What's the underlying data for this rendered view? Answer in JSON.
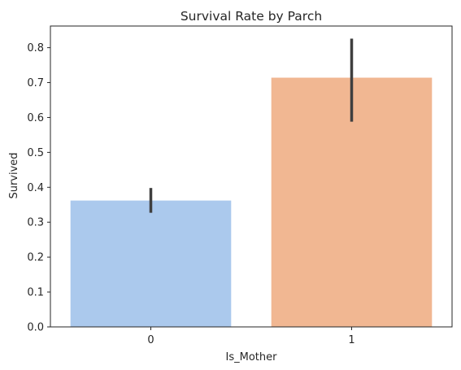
{
  "chart_data": {
    "type": "bar",
    "title": "Survival Rate by Parch",
    "xlabel": "Is_Mother",
    "ylabel": "Survived",
    "categories": [
      "0",
      "1"
    ],
    "values": [
      0.362,
      0.714
    ],
    "error_bars": [
      {
        "low": 0.327,
        "high": 0.398
      },
      {
        "low": 0.588,
        "high": 0.826
      }
    ],
    "ylim": [
      0,
      0.862
    ],
    "yticks": [
      0.0,
      0.1,
      0.2,
      0.3,
      0.4,
      0.5,
      0.6,
      0.7,
      0.8
    ],
    "ytick_labels": [
      "0.0",
      "0.1",
      "0.2",
      "0.3",
      "0.4",
      "0.5",
      "0.6",
      "0.7",
      "0.8"
    ],
    "bar_colors": [
      "#abc9ed",
      "#f1b792"
    ],
    "errorbar_color": "#3f3f3f",
    "grid": false,
    "legend": "none"
  }
}
